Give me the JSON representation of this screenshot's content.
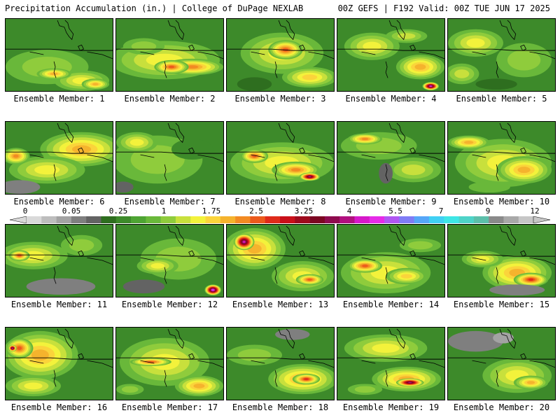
{
  "header": {
    "title_left": "Precipitation Accumulation (in.) | College of DuPage NEXLAB",
    "title_right": "00Z GEFS | F192 Valid: 00Z TUE JUN 17 2025"
  },
  "colorbar": {
    "tick_labels": [
      "0",
      "0.05",
      "0.25",
      "1",
      "1.75",
      "2.5",
      "3.25",
      "4",
      "5.5",
      "7",
      "9",
      "12"
    ],
    "colors": [
      "#d9d9d9",
      "#bdbdbd",
      "#a3a3a3",
      "#7f7f7f",
      "#636363",
      "#2e6e1f",
      "#3d8a2a",
      "#4ea433",
      "#69b83a",
      "#8fcc3c",
      "#c8e03c",
      "#f3f23b",
      "#fbd43b",
      "#f5b32d",
      "#f28a23",
      "#ec5a1c",
      "#df2a1a",
      "#c90f19",
      "#9e0a1d",
      "#7c0622",
      "#8e0b4e",
      "#b1107f",
      "#d618c9",
      "#e62ae8",
      "#b056f2",
      "#7f7cf6",
      "#56a6f8",
      "#40d0f4",
      "#3ee6e6",
      "#4ed3c8",
      "#5cbfaa",
      "#8a8a8a",
      "#a8a8a8",
      "#c6c6c6"
    ]
  },
  "panels": [
    {
      "label": "Ensemble Member: 1"
    },
    {
      "label": "Ensemble Member: 2"
    },
    {
      "label": "Ensemble Member: 3"
    },
    {
      "label": "Ensemble Member: 4"
    },
    {
      "label": "Ensemble Member: 5"
    },
    {
      "label": "Ensemble Member: 6"
    },
    {
      "label": "Ensemble Member: 7"
    },
    {
      "label": "Ensemble Member: 8"
    },
    {
      "label": "Ensemble Member: 9"
    },
    {
      "label": "Ensemble Member: 10"
    },
    {
      "label": "Ensemble Member: 11"
    },
    {
      "label": "Ensemble Member: 12"
    },
    {
      "label": "Ensemble Member: 13"
    },
    {
      "label": "Ensemble Member: 14"
    },
    {
      "label": "Ensemble Member: 15"
    },
    {
      "label": "Ensemble Member: 16"
    },
    {
      "label": "Ensemble Member: 17"
    },
    {
      "label": "Ensemble Member: 18"
    },
    {
      "label": "Ensemble Member: 19"
    },
    {
      "label": "Ensemble Member: 20"
    }
  ]
}
